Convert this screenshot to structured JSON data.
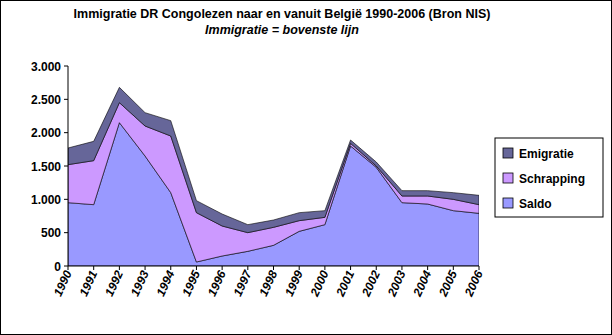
{
  "chart_data": {
    "type": "area",
    "title": "Immigratie DR Congolezen naar en vanuit België 1990-2006  (Bron NIS)",
    "subtitle": "Immigratie = bovenste lijn",
    "stacked": true,
    "grid": false,
    "legend": "right",
    "categories": [
      "1990",
      "1991",
      "1992",
      "1993",
      "1994",
      "1995",
      "1996",
      "1997",
      "1998",
      "1999",
      "2000",
      "2001",
      "2002",
      "2003",
      "2004",
      "2005",
      "2006"
    ],
    "ylim": [
      0,
      3000
    ],
    "yticks": [
      0,
      500,
      {
        "value": 1000,
        "label": "1.000"
      },
      {
        "value": 1500,
        "label": "1.500"
      },
      {
        "value": 2000,
        "label": "2.000"
      },
      {
        "value": 2500,
        "label": "2.500"
      },
      {
        "value": 3000,
        "label": "3.000"
      }
    ],
    "series": [
      {
        "name": "Saldo",
        "color": "#9999ff",
        "values": [
          950,
          920,
          2150,
          1650,
          1100,
          60,
          150,
          220,
          310,
          520,
          620,
          1800,
          1480,
          950,
          930,
          830,
          790
        ]
      },
      {
        "name": "Schrapping",
        "color": "#cc99ff",
        "values": [
          570,
          660,
          300,
          450,
          850,
          740,
          450,
          280,
          270,
          160,
          110,
          40,
          20,
          100,
          120,
          170,
          130
        ]
      },
      {
        "name": "Emigratie",
        "color": "#666699",
        "values": [
          250,
          290,
          230,
          200,
          230,
          180,
          180,
          120,
          110,
          120,
          100,
          50,
          60,
          80,
          80,
          100,
          140
        ]
      }
    ]
  }
}
